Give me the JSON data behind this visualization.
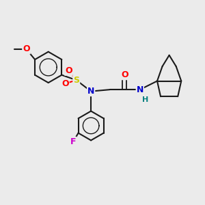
{
  "background_color": "#ebebeb",
  "bond_color": "#1a1a1a",
  "atom_colors": {
    "O": "#ff0000",
    "N": "#0000cc",
    "S": "#cccc00",
    "F": "#cc00cc",
    "H": "#008080",
    "C": "#1a1a1a"
  },
  "figsize": [
    3.0,
    3.0
  ],
  "dpi": 100
}
